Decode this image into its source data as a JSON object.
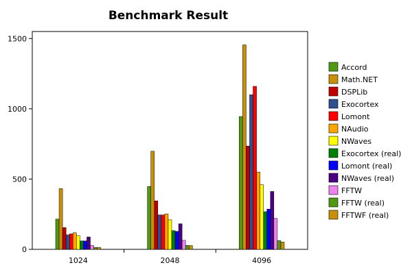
{
  "chart_data": {
    "type": "bar",
    "title": "Benchmark Result",
    "xlabel": "",
    "ylabel": "",
    "categories": [
      "1024",
      "2048",
      "4096"
    ],
    "ylim": [
      0,
      1550
    ],
    "yticks": [
      0,
      500,
      1000,
      1500
    ],
    "ytick_labels": [
      "0",
      "500",
      "1000",
      "1500"
    ],
    "grid": false,
    "legend_position": "right",
    "series": [
      {
        "name": "Accord",
        "color": "#4f9a12",
        "values": [
          215,
          447,
          945
        ]
      },
      {
        "name": "Math.NET",
        "color": "#c8900a",
        "values": [
          432,
          698,
          1455
        ]
      },
      {
        "name": "DSPLib",
        "color": "#c00000",
        "values": [
          155,
          345,
          735
        ]
      },
      {
        "name": "Exocortex",
        "color": "#2f4f8f",
        "values": [
          103,
          245,
          1100
        ]
      },
      {
        "name": "Lomont",
        "color": "#ff0000",
        "values": [
          110,
          245,
          1160
        ]
      },
      {
        "name": "NAudio",
        "color": "#ffa500",
        "values": [
          118,
          252,
          550
        ]
      },
      {
        "name": "NWaves",
        "color": "#ffff00",
        "values": [
          98,
          210,
          460
        ]
      },
      {
        "name": "Exocortex (real)",
        "color": "#008000",
        "values": [
          60,
          133,
          268
        ]
      },
      {
        "name": "Lomont (real)",
        "color": "#0000ff",
        "values": [
          60,
          128,
          286
        ]
      },
      {
        "name": "NWaves (real)",
        "color": "#4b0082",
        "values": [
          88,
          182,
          412
        ]
      },
      {
        "name": "FFTW",
        "color": "#ee82ee",
        "values": [
          27,
          64,
          220
        ]
      },
      {
        "name": "FFTW (real)",
        "color": "#4f9a12",
        "values": [
          14,
          28,
          62
        ]
      },
      {
        "name": "FFTWF (real)",
        "color": "#c8900a",
        "values": [
          14,
          27,
          52
        ]
      }
    ]
  }
}
